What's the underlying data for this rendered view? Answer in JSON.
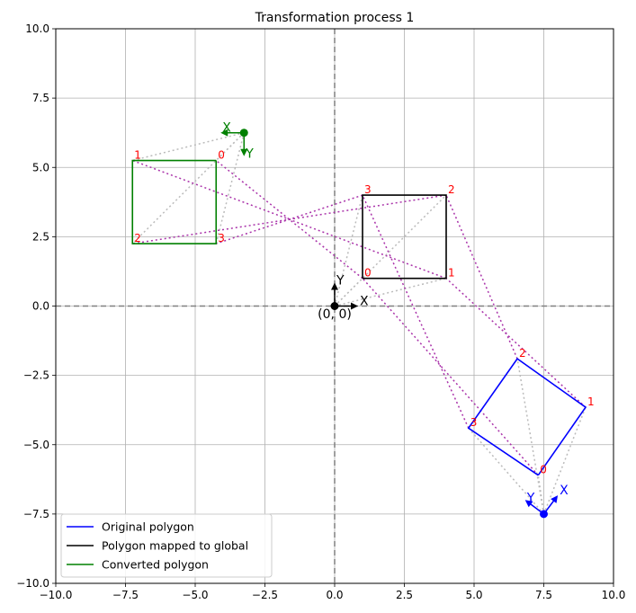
{
  "chart_data": {
    "type": "line",
    "title": "Transformation process 1",
    "xlabel": "",
    "ylabel": "",
    "xlim": [
      -10,
      10
    ],
    "ylim": [
      -10,
      10
    ],
    "xticks": [
      -10,
      -7.5,
      -5,
      -2.5,
      0,
      2.5,
      5,
      7.5,
      10
    ],
    "yticks": [
      -10,
      -7.5,
      -5,
      -2.5,
      0,
      2.5,
      5,
      7.5,
      10
    ],
    "xtick_labels": [
      "−10.0",
      "−7.5",
      "−5.0",
      "−2.5",
      "0.0",
      "2.5",
      "5.0",
      "7.5",
      "10.0"
    ],
    "ytick_labels": [
      "−10.0",
      "−7.5",
      "−5.0",
      "−2.5",
      "0.0",
      "2.5",
      "5.0",
      "7.5",
      "10.0"
    ],
    "grid": true,
    "legend_position": "lower-left",
    "origin_label": "(0, 0)",
    "series": [
      {
        "name": "Original polygon",
        "color": "#0000ff",
        "points": [
          [
            7.3,
            -6.1
          ],
          [
            9.0,
            -3.65
          ],
          [
            6.55,
            -1.9
          ],
          [
            4.8,
            -4.4
          ]
        ],
        "vertex_labels": [
          "0",
          "1",
          "2",
          "3"
        ],
        "frame": {
          "origin": [
            7.5,
            -7.5
          ],
          "x_dir": [
            0.6,
            0.8
          ],
          "y_dir": [
            -0.8,
            0.6
          ],
          "x_label": "X",
          "y_label": "Y"
        }
      },
      {
        "name": "Polygon mapped to global",
        "color": "#000000",
        "points": [
          [
            1,
            1
          ],
          [
            4,
            1
          ],
          [
            4,
            4
          ],
          [
            1,
            4
          ]
        ],
        "vertex_labels": [
          "0",
          "1",
          "2",
          "3"
        ],
        "frame": {
          "origin": [
            0,
            0
          ],
          "x_dir": [
            1,
            0
          ],
          "y_dir": [
            0,
            1
          ],
          "x_label": "X",
          "y_label": "Y"
        }
      },
      {
        "name": "Converted polygon",
        "color": "#008000",
        "points": [
          [
            -4.25,
            5.25
          ],
          [
            -7.25,
            5.25
          ],
          [
            -7.25,
            2.25
          ],
          [
            -4.25,
            2.25
          ]
        ],
        "vertex_labels": [
          "0",
          "1",
          "2",
          "3"
        ],
        "frame": {
          "origin": [
            -3.25,
            6.25
          ],
          "x_dir": [
            -1,
            0
          ],
          "y_dir": [
            0,
            -1
          ],
          "x_label": "X",
          "y_label": "Y"
        }
      }
    ],
    "correspondence_lines_color": "#aa33aa",
    "frame_lines_color": "#bbbbbb",
    "vertex_label_color": "#ff0000"
  }
}
